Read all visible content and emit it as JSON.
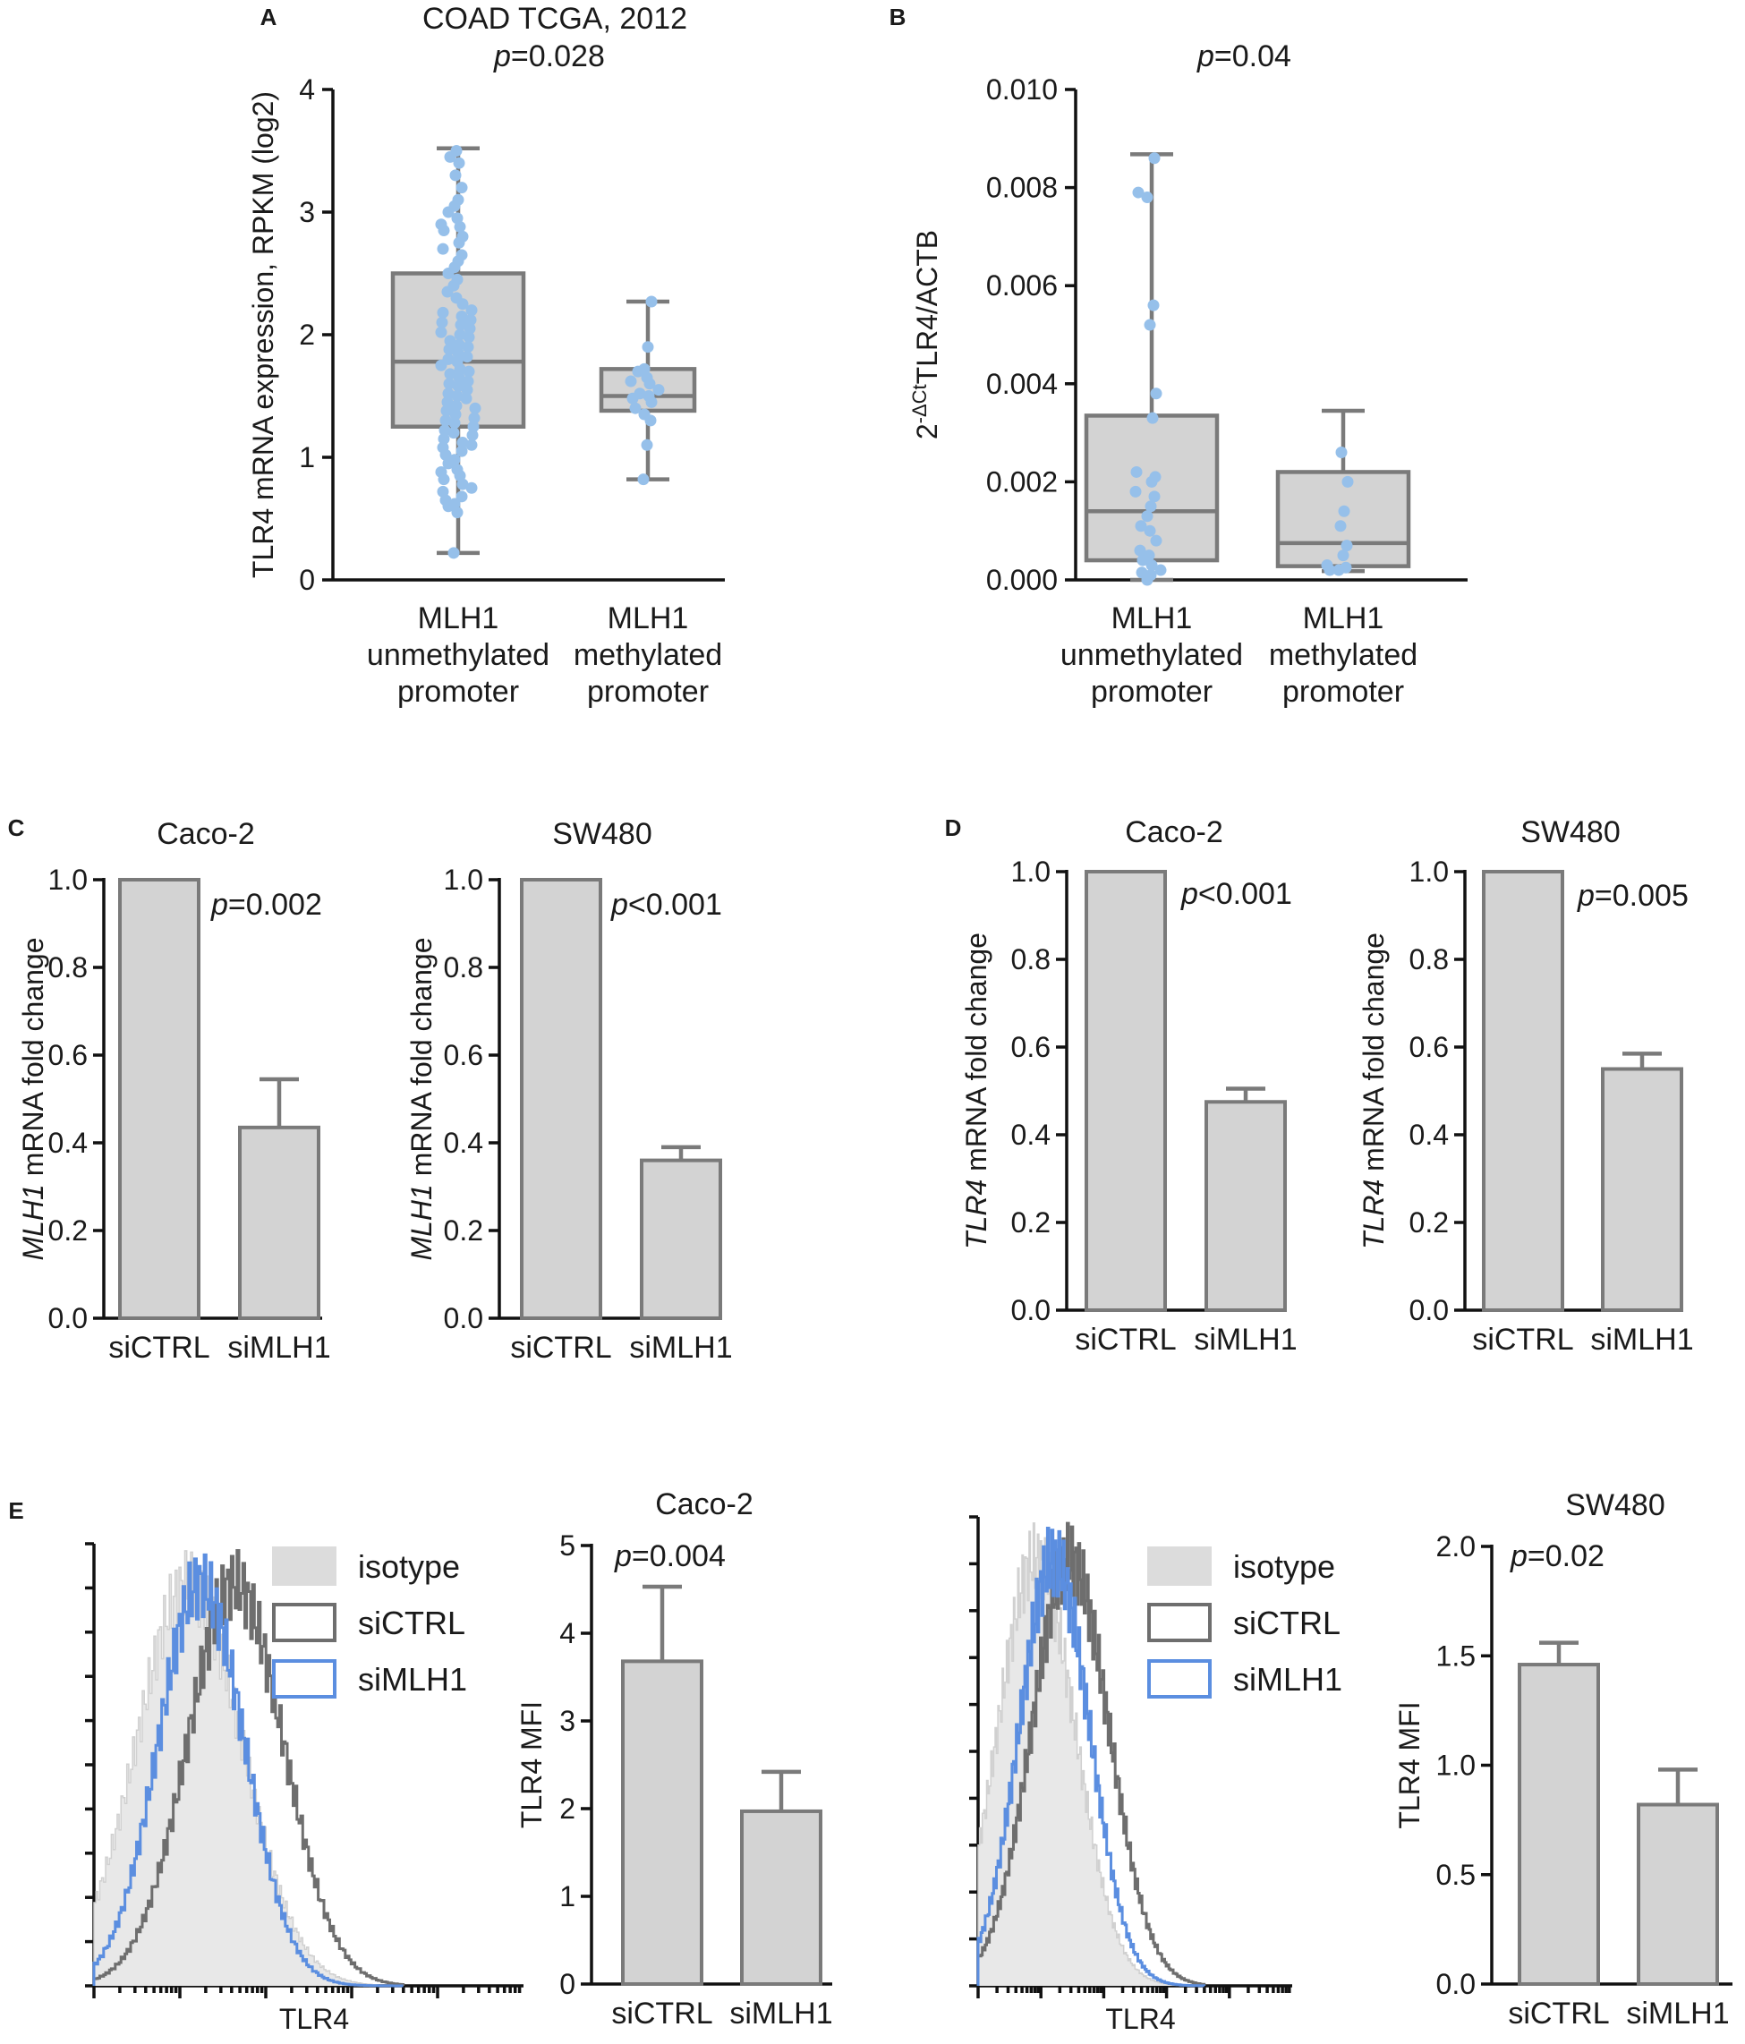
{
  "panels": {
    "A": "A",
    "B": "B",
    "C": "C",
    "D": "D",
    "E": "E"
  },
  "chart_data": [
    {
      "id": "A",
      "type": "box",
      "title": "COAD TCGA, 2012",
      "p_prefix": "p",
      "p_rest": "=0.028",
      "ylabel": "TLR4 mRNA expression,  RPKM (log2)",
      "ylim": [
        0,
        4
      ],
      "yticks": [
        "0",
        "1",
        "2",
        "3",
        "4"
      ],
      "categories": [
        [
          "MLH1",
          "unmethylated",
          "promoter"
        ],
        [
          "MLH1",
          "methylated",
          "promoter"
        ]
      ],
      "boxes": [
        {
          "min": 0.22,
          "q1": 1.25,
          "median": 1.78,
          "q3": 2.5,
          "max": 3.52
        },
        {
          "min": 0.82,
          "q1": 1.38,
          "median": 1.5,
          "q3": 1.72,
          "max": 2.27
        }
      ],
      "points": [
        [
          0.22,
          0.55,
          0.6,
          0.62,
          0.65,
          0.68,
          0.72,
          0.75,
          0.78,
          0.82,
          0.85,
          0.88,
          0.9,
          0.95,
          0.98,
          1.02,
          1.05,
          1.08,
          1.1,
          1.12,
          1.15,
          1.18,
          1.2,
          1.22,
          1.25,
          1.28,
          1.3,
          1.32,
          1.35,
          1.38,
          1.4,
          1.42,
          1.45,
          1.48,
          1.5,
          1.52,
          1.55,
          1.58,
          1.6,
          1.62,
          1.65,
          1.68,
          1.7,
          1.72,
          1.75,
          1.78,
          1.8,
          1.82,
          1.85,
          1.88,
          1.9,
          1.92,
          1.95,
          1.98,
          2.0,
          2.02,
          2.05,
          2.08,
          2.1,
          2.12,
          2.15,
          2.18,
          2.2,
          2.25,
          2.3,
          2.35,
          2.4,
          2.45,
          2.5,
          2.55,
          2.6,
          2.65,
          2.7,
          2.75,
          2.8,
          2.85,
          2.88,
          2.9,
          2.95,
          3.0,
          3.05,
          3.1,
          3.2,
          3.3,
          3.4,
          3.45,
          3.5
        ],
        [
          0.82,
          1.1,
          1.3,
          1.35,
          1.4,
          1.45,
          1.48,
          1.5,
          1.52,
          1.55,
          1.6,
          1.62,
          1.65,
          1.7,
          1.72,
          1.9,
          2.27
        ]
      ]
    },
    {
      "id": "B",
      "type": "box",
      "p_prefix": "p",
      "p_rest": "=0.04",
      "ylabel_sup": "-ΔCt",
      "ylabel_base": "2",
      "ylabel_rest": "TLR4/ACTB",
      "ylim": [
        0,
        0.01
      ],
      "yticks": [
        "0.000",
        "0.002",
        "0.004",
        "0.006",
        "0.008",
        "0.010"
      ],
      "categories": [
        [
          "MLH1",
          "unmethylated",
          "promoter"
        ],
        [
          "MLH1",
          "methylated",
          "promoter"
        ]
      ],
      "boxes": [
        {
          "min": 0.0,
          "q1": 0.0004,
          "median": 0.0014,
          "q3": 0.00335,
          "max": 0.00868
        },
        {
          "min": 0.00018,
          "q1": 0.00028,
          "median": 0.00075,
          "q3": 0.0022,
          "max": 0.00345
        }
      ],
      "points": [
        [
          0.0,
          0.0001,
          0.00015,
          0.0002,
          0.0003,
          0.0004,
          0.0005,
          0.0006,
          0.0008,
          0.001,
          0.0011,
          0.0013,
          0.0015,
          0.0017,
          0.0018,
          0.002,
          0.0021,
          0.0022,
          0.0033,
          0.0038,
          0.0052,
          0.0056,
          0.0078,
          0.0079,
          0.0086
        ],
        [
          0.0002,
          0.0002,
          0.00025,
          0.0003,
          0.0005,
          0.0007,
          0.0011,
          0.0014,
          0.002,
          0.0026
        ]
      ]
    },
    {
      "id": "C1",
      "type": "bar",
      "title": "Caco-2",
      "p_prefix": "p",
      "p_rest": "=0.002",
      "ylabel_italic": "MLH1",
      "ylabel_rest": " mRNA fold change",
      "ylim": [
        0,
        1.0
      ],
      "yticks": [
        "0.0",
        "0.2",
        "0.4",
        "0.6",
        "0.8",
        "1.0"
      ],
      "categories": [
        "siCTRL",
        "siMLH1"
      ],
      "values": [
        1.0,
        0.435
      ],
      "errors": [
        0,
        0.11
      ]
    },
    {
      "id": "C2",
      "type": "bar",
      "title": "SW480",
      "p_prefix": "p",
      "p_rest": "<0.001",
      "ylabel_italic": "MLH1",
      "ylabel_rest": " mRNA fold change",
      "ylim": [
        0,
        1.0
      ],
      "yticks": [
        "0.0",
        "0.2",
        "0.4",
        "0.6",
        "0.8",
        "1.0"
      ],
      "categories": [
        "siCTRL",
        "siMLH1"
      ],
      "values": [
        1.0,
        0.36
      ],
      "errors": [
        0,
        0.03
      ]
    },
    {
      "id": "D1",
      "type": "bar",
      "title": "Caco-2",
      "p_prefix": "p",
      "p_rest": "<0.001",
      "ylabel_italic": "TLR4",
      "ylabel_rest": " mRNA fold change",
      "ylim": [
        0,
        1.0
      ],
      "yticks": [
        "0.0",
        "0.2",
        "0.4",
        "0.6",
        "0.8",
        "1.0"
      ],
      "categories": [
        "siCTRL",
        "siMLH1"
      ],
      "values": [
        1.0,
        0.475
      ],
      "errors": [
        0,
        0.03
      ]
    },
    {
      "id": "D2",
      "type": "bar",
      "title": "SW480",
      "p_prefix": "p",
      "p_rest": "=0.005",
      "ylabel_italic": "TLR4",
      "ylabel_rest": " mRNA fold change",
      "ylim": [
        0,
        1.0
      ],
      "yticks": [
        "0.0",
        "0.2",
        "0.4",
        "0.6",
        "0.8",
        "1.0"
      ],
      "categories": [
        "siCTRL",
        "siMLH1"
      ],
      "values": [
        1.0,
        0.55
      ],
      "errors": [
        0,
        0.035
      ]
    },
    {
      "id": "E1",
      "type": "bar",
      "title": "Caco-2",
      "p_prefix": "p",
      "p_rest": "=0.004",
      "ylabel": "TLR4 MFI",
      "ylim": [
        0,
        5
      ],
      "yticks": [
        "0",
        "1",
        "2",
        "3",
        "4",
        "5"
      ],
      "categories": [
        "siCTRL",
        "siMLH1"
      ],
      "values": [
        3.68,
        1.97
      ],
      "errors": [
        0.85,
        0.45
      ]
    },
    {
      "id": "E2",
      "type": "bar",
      "title": "SW480",
      "p_prefix": "p",
      "p_rest": "=0.02",
      "ylabel": "TLR4 MFI",
      "ylim": [
        0,
        2.0
      ],
      "yticks": [
        "0.0",
        "0.5",
        "1.0",
        "1.5",
        "2.0"
      ],
      "categories": [
        "siCTRL",
        "siMLH1"
      ],
      "values": [
        1.46,
        0.82
      ],
      "errors": [
        0.1,
        0.16
      ]
    },
    {
      "id": "H1",
      "type": "histogram",
      "xlabel": "TLR4",
      "x_scale": "log",
      "legend": [
        "isotype",
        "siCTRL",
        "siMLH1"
      ],
      "series": [
        {
          "name": "isotype",
          "peak": 0.3,
          "width": 0.55
        },
        {
          "name": "siCTRL",
          "peak": 0.45,
          "width": 0.5
        },
        {
          "name": "siMLH1",
          "peak": 0.34,
          "width": 0.45
        }
      ]
    },
    {
      "id": "H2",
      "type": "histogram",
      "xlabel": "TLR4",
      "x_scale": "log",
      "legend": [
        "isotype",
        "siCTRL",
        "siMLH1"
      ],
      "series": [
        {
          "name": "isotype",
          "peak": 0.25,
          "width": 0.55
        },
        {
          "name": "siCTRL",
          "peak": 0.4,
          "width": 0.55
        },
        {
          "name": "siMLH1",
          "peak": 0.33,
          "width": 0.5
        }
      ]
    }
  ],
  "colors": {
    "points": "#96c0ea",
    "isotype": "#e8e8e8",
    "siCTRL": "#6e6e6e",
    "siMLH1": "#5b8ee0",
    "box": "#d3d3d3",
    "edge": "#7a7a7a"
  }
}
